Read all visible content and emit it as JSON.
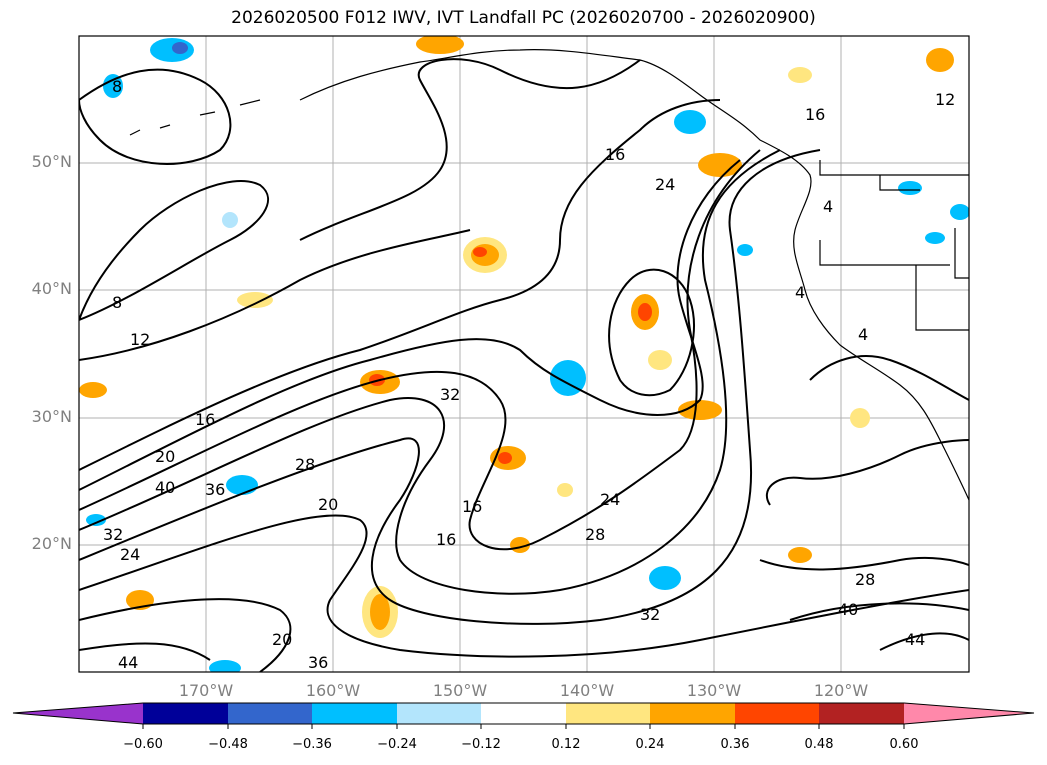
{
  "title": "2026020500 F012 IWV, IVT Landfall PC (2026020700 - 2026020900)",
  "lat_labels": [
    "50°N",
    "40°N",
    "30°N",
    "20°N"
  ],
  "lon_labels": [
    "170°W",
    "160°W",
    "150°W",
    "140°W",
    "130°W",
    "120°W"
  ],
  "colorbar": {
    "ticks": [
      "−0.60",
      "−0.48",
      "−0.36",
      "−0.24",
      "−0.12",
      "0.12",
      "0.24",
      "0.36",
      "0.48",
      "0.60"
    ],
    "colors": [
      "#9933cc",
      "#000099",
      "#3366cc",
      "#00bfff",
      "#b3e5fc",
      "#ffffff",
      "#ffe680",
      "#ffa500",
      "#ff4500",
      "#b22222",
      "#ff88aa"
    ]
  },
  "contour_labels": [
    "8",
    "8",
    "12",
    "12",
    "16",
    "16",
    "16",
    "16",
    "16",
    "20",
    "20",
    "20",
    "24",
    "24",
    "24",
    "28",
    "28",
    "28",
    "32",
    "32",
    "32",
    "36",
    "36",
    "40",
    "40",
    "44",
    "44",
    "4",
    "4",
    "4"
  ]
}
